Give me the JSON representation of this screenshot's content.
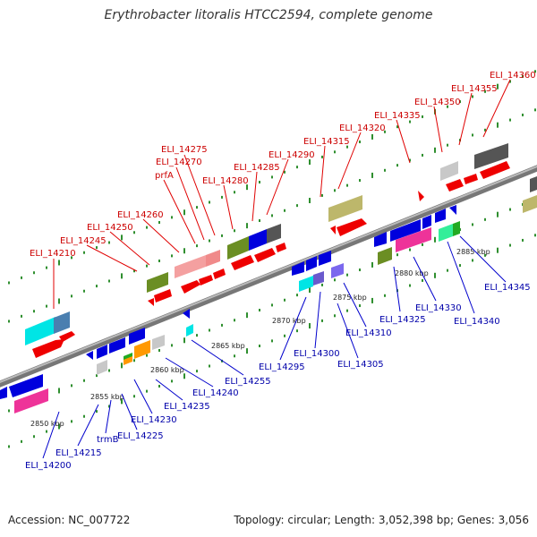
{
  "title": "Erythrobacter litoralis HTCC2594, complete genome",
  "footer": {
    "accession": "Accession: NC_007722",
    "summary": "Topology: circular; Length: 3,052,398 bp; Genes: 3,056"
  },
  "colors": {
    "forward_label": "#cc0000",
    "reverse_label": "#0000aa",
    "backbone": "#888888",
    "ruler_dots": "#2f8f2f"
  },
  "ticks": [
    "2850 kbp",
    "2855 kbp",
    "2860 kbp",
    "2865 kbp",
    "2870 kbp",
    "2875 kbp",
    "2880 kbp",
    "2885 kbp"
  ],
  "forward_labels": [
    "ELI_14210",
    "ELI_14245",
    "ELI_14250",
    "ELI_14260",
    "prfA",
    "ELI_14270",
    "ELI_14275",
    "ELI_14280",
    "ELI_14285",
    "ELI_14290",
    "ELI_14315",
    "ELI_14320",
    "ELI_14335",
    "ELI_14350",
    "ELI_14355",
    "ELI_14360"
  ],
  "reverse_labels": [
    "ELI_14200",
    "ELI_14215",
    "trmB",
    "ELI_14225",
    "ELI_14230",
    "ELI_14235",
    "ELI_14240",
    "ELI_14255",
    "ELI_14295",
    "ELI_14300",
    "ELI_14305",
    "ELI_14310",
    "ELI_14325",
    "ELI_14330",
    "ELI_14340",
    "ELI_14345"
  ]
}
